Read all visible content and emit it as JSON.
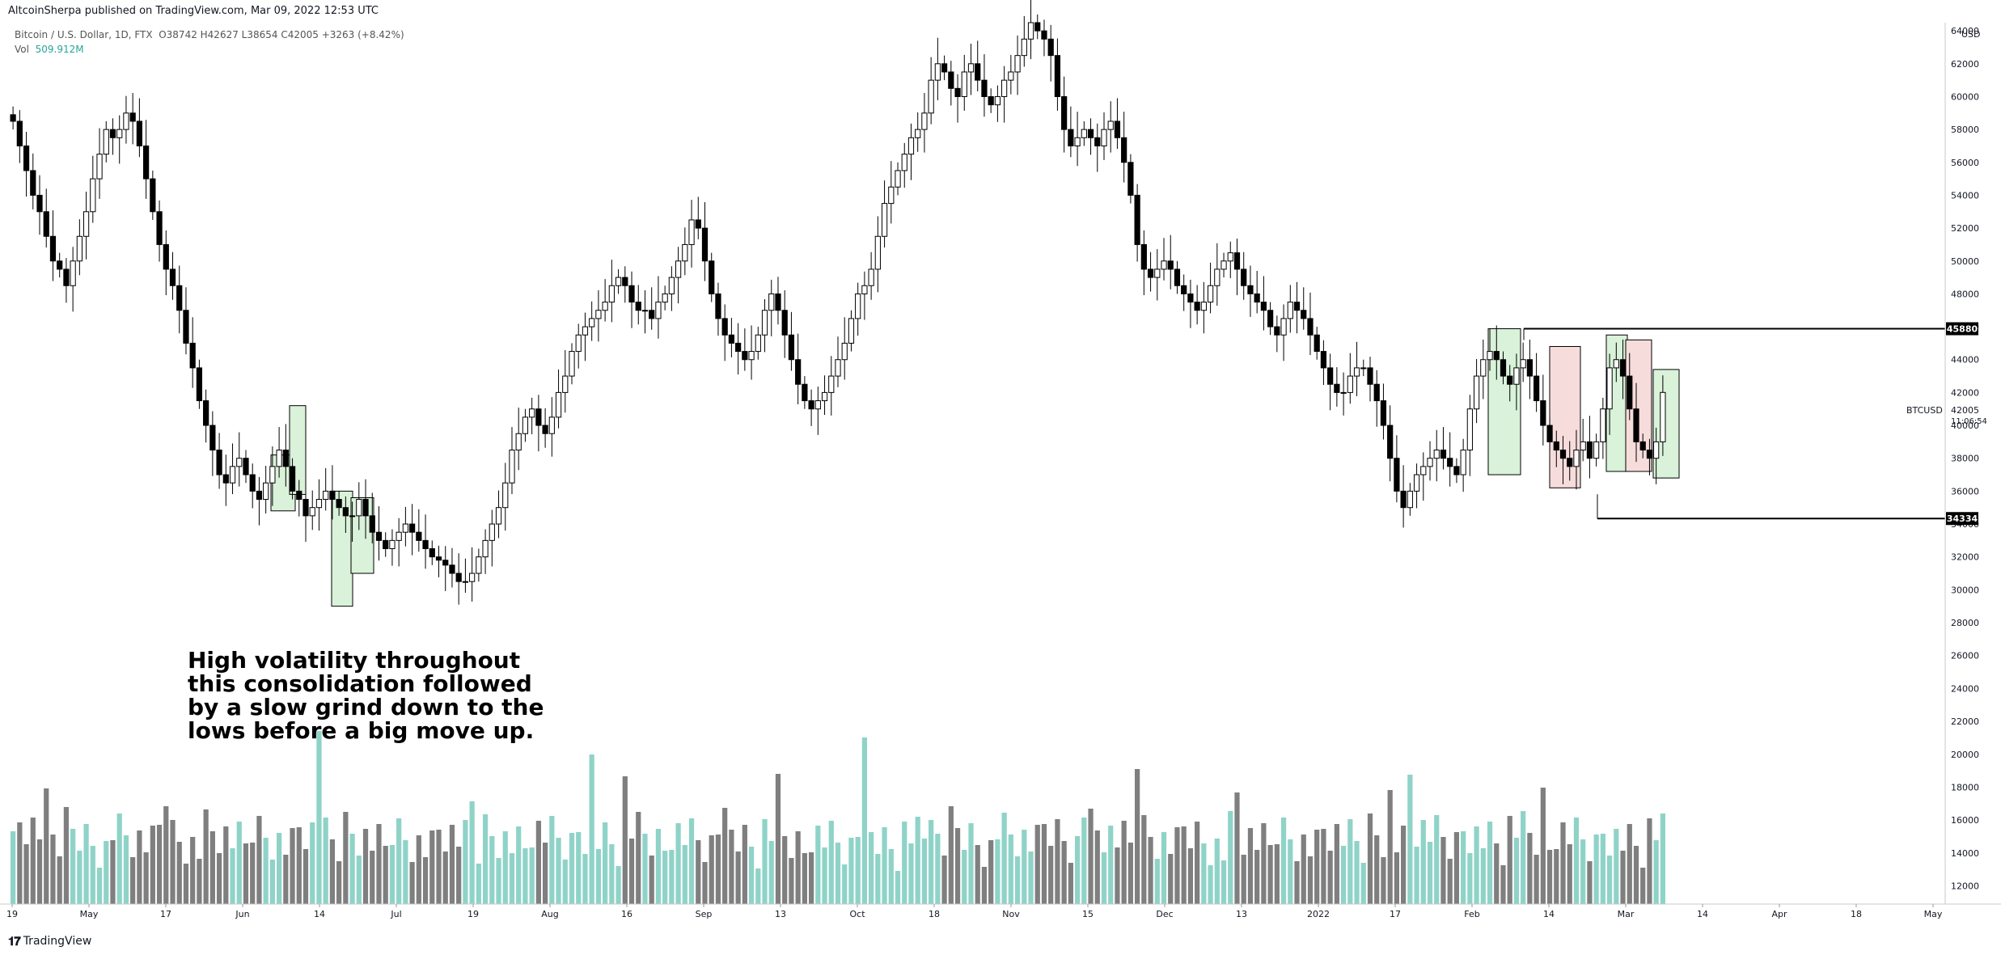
{
  "publish_line": "AltcoinSherpa published on TradingView.com, Mar 09, 2022 12:53 UTC",
  "header": {
    "symbol": "Bitcoin / U.S. Dollar, 1D, FTX",
    "ohlc": "O38742  H42627  L38654  C42005  +3263 (+8.42%)",
    "vol_label": "Vol",
    "vol_value": "509.912M"
  },
  "annotation": "High volatility throughout this consolidation followed by a slow grind down to the lows before a big move up.",
  "footer": {
    "brand": "TradingView",
    "logo_icon": "tradingview-logo-icon"
  },
  "price_axis": {
    "currency": "USD",
    "ticks": [
      "64000",
      "62000",
      "60000",
      "58000",
      "56000",
      "54000",
      "52000",
      "50000",
      "48000",
      "46000",
      "44000",
      "42000",
      "40000",
      "38000",
      "36000",
      "34000",
      "32000",
      "30000",
      "28000",
      "26000",
      "24000",
      "22000",
      "20000",
      "18000",
      "16000",
      "14000",
      "12000"
    ],
    "current_label": "BTCUSD",
    "current_price": "42005",
    "countdown": "11:06:54",
    "levels": [
      "45880",
      "34334"
    ]
  },
  "time_axis": [
    "19",
    "May",
    "17",
    "Jun",
    "14",
    "Jul",
    "19",
    "Aug",
    "16",
    "Sep",
    "13",
    "Oct",
    "18",
    "Nov",
    "15",
    "Dec",
    "13",
    "2022",
    "17",
    "Feb",
    "14",
    "Mar",
    "14",
    "Apr",
    "18",
    "May"
  ],
  "colors": {
    "up": "#ffffff",
    "down": "#000000",
    "vol_up": "#8fd3c8",
    "vol_down": "#7f7f7f",
    "box_green": "#d9f2d9",
    "box_red": "#f7dcdc"
  },
  "chart_data": {
    "type": "candlestick",
    "title": "",
    "ylim": [
      28000,
      64500
    ],
    "level_lines": [
      45880,
      34334
    ],
    "close_series": [
      58500,
      57000,
      55500,
      54000,
      53000,
      51500,
      50000,
      49500,
      48500,
      50000,
      51500,
      53000,
      55000,
      56500,
      58000,
      57500,
      58000,
      59000,
      58500,
      57000,
      55000,
      53000,
      51000,
      49500,
      48500,
      47000,
      45000,
      43500,
      41500,
      40000,
      38500,
      37000,
      36500,
      37500,
      38000,
      37000,
      36000,
      35500,
      36500,
      37500,
      38500,
      37500,
      36000,
      35500,
      34500,
      35000,
      35500,
      36000,
      35500,
      35000,
      34500,
      34500,
      35500,
      34500,
      33500,
      33000,
      32500,
      33000,
      33500,
      34000,
      33500,
      33000,
      32500,
      32000,
      31800,
      31500,
      31000,
      30500,
      30500,
      31000,
      32000,
      33000,
      34000,
      35000,
      36500,
      38500,
      39500,
      40500,
      41000,
      40000,
      39500,
      40500,
      42000,
      43000,
      44500,
      45500,
      46000,
      46500,
      47000,
      47500,
      48500,
      49000,
      48500,
      47500,
      47000,
      47000,
      46500,
      47500,
      48000,
      49000,
      50000,
      51000,
      52500,
      52000,
      50000,
      48000,
      46500,
      45500,
      45000,
      44500,
      44000,
      44500,
      45500,
      47000,
      48000,
      47000,
      45500,
      44000,
      42500,
      41500,
      41000,
      41500,
      42000,
      43000,
      44000,
      45000,
      46500,
      48000,
      48500,
      49500,
      51500,
      53500,
      54500,
      55500,
      56500,
      57500,
      58000,
      59000,
      61000,
      62000,
      61500,
      60500,
      60000,
      61500,
      62000,
      61000,
      60000,
      59500,
      60000,
      61000,
      61500,
      62500,
      63500,
      64500,
      64000,
      63500,
      62500,
      60000,
      58000,
      57000,
      57500,
      58000,
      57500,
      57000,
      58000,
      58500,
      57500,
      56000,
      54000,
      51000,
      49500,
      49000,
      49500,
      50000,
      49500,
      48500,
      48000,
      47500,
      47000,
      47500,
      48500,
      49500,
      50000,
      50500,
      49500,
      48500,
      48000,
      47500,
      47000,
      46000,
      45500,
      46500,
      47500,
      47000,
      46500,
      45500,
      44500,
      43500,
      42500,
      42000,
      42000,
      43000,
      43500,
      43500,
      42500,
      41500,
      40000,
      38000,
      36000,
      35000,
      36000,
      37000,
      37500,
      38000,
      38500,
      38000,
      37500,
      37000,
      38500,
      41000,
      43000,
      44000,
      44500,
      44000,
      43000,
      42500,
      43500,
      44000,
      43000,
      41500,
      40000,
      39000,
      38500,
      38000,
      37500,
      38500,
      39000,
      38000,
      39000,
      41000,
      43500,
      44000,
      43000,
      41000,
      39000,
      38500,
      38000,
      39000,
      42005
    ]
  }
}
